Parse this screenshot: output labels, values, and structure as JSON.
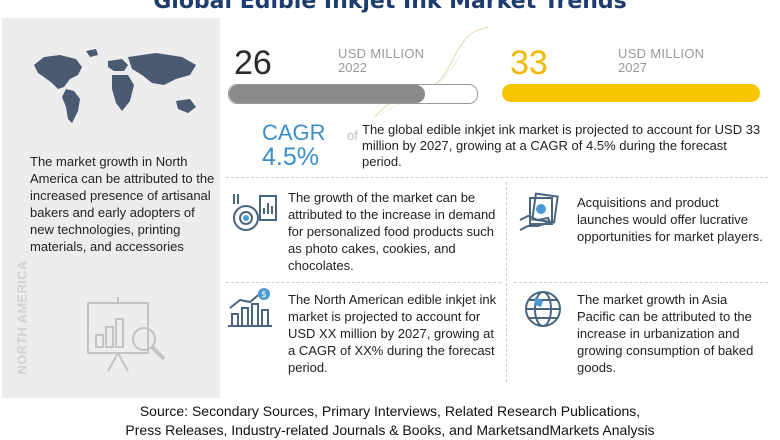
{
  "title": "Global Edible Inkjet Ink Market Trends",
  "left_panel": {
    "text": "The market growth in North America can be attributed to the increased presence of artisanal bakers and early adopters of new technologies, printing materials, and accessories",
    "vertical_label": "NORTH AMERICA"
  },
  "market": {
    "value_2022": "26",
    "unit_2022": "USD MILLION",
    "year_2022": "2022",
    "value_2027": "33",
    "unit_2027": "USD MILLION",
    "year_2027": "2027",
    "bar_2022_fraction": 0.79,
    "bar_2027_fraction": 1.0
  },
  "cagr": {
    "label": "CAGR",
    "of": "of",
    "value": "4.5%",
    "description": "The global edible inkjet ink market is projected to account for USD 33 million by 2027, growing at a CAGR of 4.5% during the forecast period."
  },
  "blocks": [
    {
      "icon": "food-chart-icon",
      "text": "The growth of the market can be attributed to the increase in demand for personalized food products such as photo cakes, cookies, and chocolates."
    },
    {
      "icon": "money-hand-icon",
      "text": "Acquisitions and product launches would offer lucrative opportunities for market players."
    },
    {
      "icon": "dollar-bar-chart-icon",
      "text": "The North American edible inkjet ink market is projected to account for USD XX million by 2027, growing at a CAGR of XX% during the forecast period."
    },
    {
      "icon": "globe-icon",
      "text": "The market growth in Asia Pacific can be attributed to the increase in urbanization and growing consumption of baked goods."
    }
  ],
  "source": {
    "line1": "Source: Secondary Sources, Primary Interviews, Related Research Publications,",
    "line2": "Press Releases, Industry-related Journals & Books, and MarketsandMarkets Analysis"
  },
  "colors": {
    "title": "#1d3d6e",
    "accent_yellow": "#f7c600",
    "accent_blue": "#3a8fc8",
    "bar_gray": "#8a8a8a"
  }
}
